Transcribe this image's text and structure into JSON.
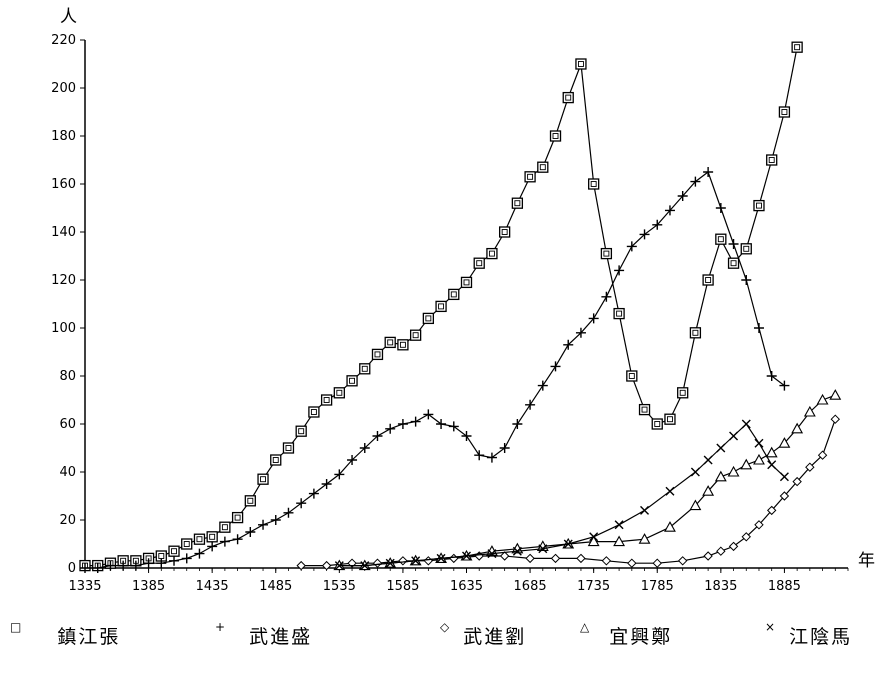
{
  "chart_data": {
    "type": "line",
    "title": "",
    "y_unit_label": "人",
    "x_unit_label": "年",
    "xlim": [
      1335,
      1935
    ],
    "ylim": [
      0,
      220
    ],
    "x_ticks": [
      1335,
      1385,
      1435,
      1485,
      1535,
      1585,
      1635,
      1685,
      1735,
      1785,
      1835,
      1885
    ],
    "y_ticks": [
      0,
      20,
      40,
      60,
      80,
      100,
      120,
      140,
      160,
      180,
      200,
      220
    ],
    "grid": false,
    "legend_position": "bottom",
    "series": [
      {
        "name": "鎮江張",
        "marker": "square",
        "legend_marker": "□",
        "x": [
          1335,
          1345,
          1355,
          1365,
          1375,
          1385,
          1395,
          1405,
          1415,
          1425,
          1435,
          1445,
          1455,
          1465,
          1475,
          1485,
          1495,
          1505,
          1515,
          1525,
          1535,
          1545,
          1555,
          1565,
          1575,
          1585,
          1595,
          1605,
          1615,
          1625,
          1635,
          1645,
          1655,
          1665,
          1675,
          1685,
          1695,
          1705,
          1715,
          1725,
          1735,
          1745,
          1755,
          1765,
          1775,
          1785,
          1795,
          1805,
          1815,
          1825,
          1835,
          1845,
          1855,
          1865,
          1875,
          1885,
          1895
        ],
        "y": [
          1,
          1,
          2,
          3,
          3,
          4,
          5,
          7,
          10,
          12,
          13,
          17,
          21,
          28,
          37,
          45,
          50,
          57,
          65,
          70,
          73,
          78,
          83,
          89,
          94,
          93,
          97,
          104,
          109,
          114,
          119,
          127,
          131,
          140,
          152,
          163,
          167,
          180,
          196,
          210,
          160,
          131,
          106,
          80,
          66,
          60,
          62,
          73,
          98,
          120,
          137,
          127,
          133,
          151,
          170,
          190,
          217
        ]
      },
      {
        "name": "武進盛",
        "marker": "plus",
        "legend_marker": "+",
        "x": [
          1335,
          1345,
          1355,
          1365,
          1375,
          1385,
          1395,
          1405,
          1415,
          1425,
          1435,
          1445,
          1455,
          1465,
          1475,
          1485,
          1495,
          1505,
          1515,
          1525,
          1535,
          1545,
          1555,
          1565,
          1575,
          1585,
          1595,
          1605,
          1615,
          1625,
          1635,
          1645,
          1655,
          1665,
          1675,
          1685,
          1695,
          1705,
          1715,
          1725,
          1735,
          1745,
          1755,
          1765,
          1775,
          1785,
          1795,
          1805,
          1815,
          1825,
          1835,
          1845,
          1855,
          1865,
          1875,
          1885
        ],
        "y": [
          0,
          0,
          1,
          1,
          1,
          2,
          2,
          3,
          4,
          6,
          9,
          11,
          12,
          15,
          18,
          20,
          23,
          27,
          31,
          35,
          39,
          45,
          50,
          55,
          58,
          60,
          61,
          64,
          60,
          59,
          55,
          47,
          46,
          50,
          60,
          68,
          76,
          84,
          93,
          98,
          104,
          113,
          124,
          134,
          139,
          143,
          149,
          155,
          161,
          165,
          150,
          135,
          120,
          100,
          80,
          76
        ]
      },
      {
        "name": "武進劉",
        "marker": "diamond",
        "legend_marker": "◇",
        "x": [
          1505,
          1525,
          1545,
          1565,
          1585,
          1605,
          1625,
          1645,
          1665,
          1685,
          1705,
          1725,
          1745,
          1765,
          1785,
          1805,
          1825,
          1835,
          1845,
          1855,
          1865,
          1875,
          1885,
          1895,
          1905,
          1915,
          1925
        ],
        "y": [
          1,
          1,
          2,
          2,
          3,
          3,
          4,
          5,
          5,
          4,
          4,
          4,
          3,
          2,
          2,
          3,
          5,
          7,
          9,
          13,
          18,
          24,
          30,
          36,
          42,
          47,
          62
        ]
      },
      {
        "name": "宜興鄭",
        "marker": "triangle",
        "legend_marker": "△",
        "x": [
          1535,
          1555,
          1575,
          1595,
          1615,
          1635,
          1655,
          1675,
          1695,
          1715,
          1735,
          1755,
          1775,
          1795,
          1815,
          1825,
          1835,
          1845,
          1855,
          1865,
          1875,
          1885,
          1895,
          1905,
          1915,
          1925
        ],
        "y": [
          1,
          1,
          2,
          3,
          4,
          5,
          7,
          8,
          9,
          10,
          11,
          11,
          12,
          17,
          26,
          32,
          38,
          40,
          43,
          45,
          48,
          52,
          58,
          65,
          70,
          72
        ]
      },
      {
        "name": "江陰馬",
        "marker": "cross",
        "legend_marker": "×",
        "x": [
          1535,
          1555,
          1575,
          1595,
          1615,
          1635,
          1655,
          1675,
          1695,
          1715,
          1735,
          1755,
          1775,
          1795,
          1815,
          1825,
          1835,
          1845,
          1855,
          1865,
          1875,
          1885
        ],
        "y": [
          1,
          1,
          2,
          3,
          4,
          5,
          6,
          7,
          8,
          10,
          13,
          18,
          24,
          32,
          40,
          45,
          50,
          55,
          60,
          52,
          43,
          38
        ]
      }
    ]
  }
}
